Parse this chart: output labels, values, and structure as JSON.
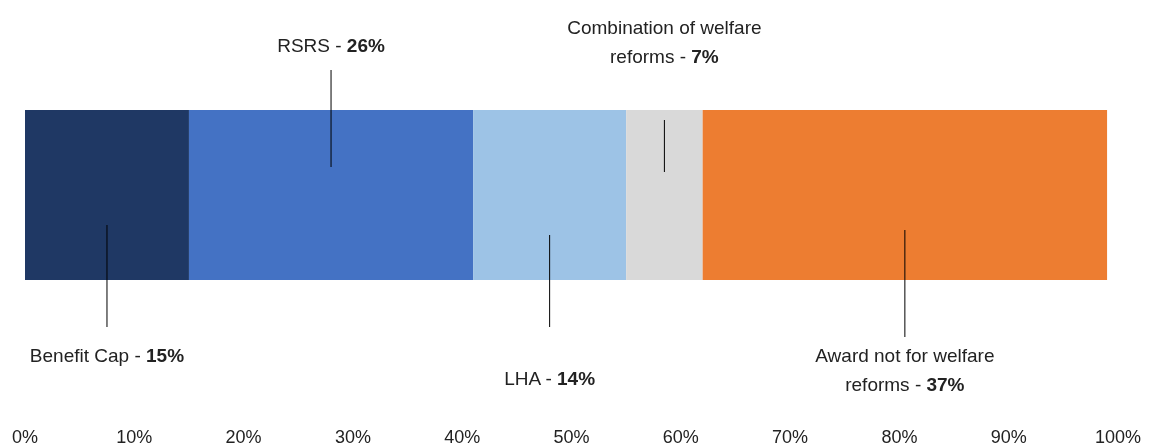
{
  "chart_data": {
    "type": "bar",
    "orientation": "horizontal",
    "stacked": true,
    "categories": [
      null
    ],
    "series": [
      {
        "color": "#1f3864",
        "values": [
          15
        ]
      },
      {
        "color": "#4472c4",
        "values": [
          26
        ]
      },
      {
        "color": "#9dc3e6",
        "values": [
          14
        ]
      },
      {
        "color": "#d9d9d9",
        "values": [
          7
        ]
      },
      {
        "color": "#ed7d31",
        "values": [
          37
        ]
      }
    ],
    "annotations": [
      "Benefit Cap - 15%",
      "RSRS - 26%",
      "LHA - 14%",
      "Combination of welfare reforms - 7%",
      "Award not for welfare reforms - 37%"
    ],
    "xlim": [
      0,
      100
    ],
    "xticks": [
      {
        "value": 0,
        "label": "0%"
      },
      {
        "value": 10,
        "label": "10%"
      },
      {
        "value": 20,
        "label": "20%"
      },
      {
        "value": 30,
        "label": "30%"
      },
      {
        "value": 40,
        "label": "40%"
      },
      {
        "value": 50,
        "label": "50%"
      },
      {
        "value": 60,
        "label": "60%"
      },
      {
        "value": 70,
        "label": "70%"
      },
      {
        "value": 80,
        "label": "80%"
      },
      {
        "value": 90,
        "label": "90%"
      },
      {
        "value": 100,
        "label": "100%"
      }
    ],
    "tick_labels": "x"
  }
}
